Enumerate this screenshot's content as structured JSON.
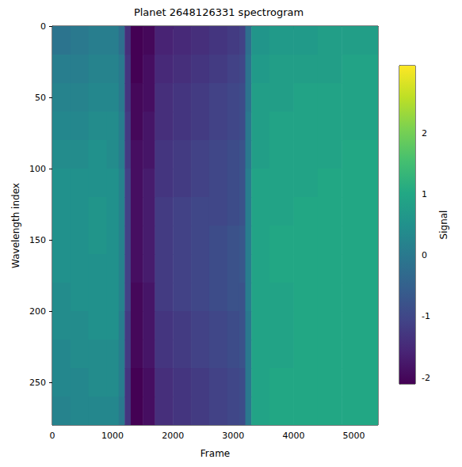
{
  "chart_data": {
    "type": "heatmap",
    "title": "Planet 2648126331 spectrogram",
    "x_label": "Frame",
    "y_label": "Wavelength index",
    "xlim": [
      0,
      5400
    ],
    "ylim": [
      280,
      0
    ],
    "xticks": [
      0,
      1000,
      2000,
      3000,
      4000,
      5000
    ],
    "yticks": [
      0,
      50,
      100,
      150,
      200,
      250
    ],
    "x_edges": [
      0,
      300,
      600,
      900,
      1100,
      1200,
      1300,
      1500,
      1700,
      2000,
      2300,
      2600,
      2900,
      3100,
      3200,
      3300,
      3600,
      4000,
      4400,
      4800,
      5400
    ],
    "y_edges": [
      0,
      20,
      40,
      60,
      80,
      100,
      120,
      140,
      160,
      180,
      200,
      220,
      240,
      260,
      280
    ],
    "cells": [
      [
        -0.1,
        0.0,
        0.1,
        0.1,
        -0.2,
        -1.4,
        -2.2,
        -2.0,
        -1.6,
        -1.5,
        -1.4,
        -1.3,
        -1.2,
        -1.1,
        -0.2,
        0.6,
        0.7,
        0.7,
        0.8,
        0.8
      ],
      [
        0.1,
        0.1,
        0.2,
        0.2,
        0.0,
        -1.3,
        -2.1,
        -1.9,
        -1.5,
        -1.4,
        -1.3,
        -1.2,
        -1.1,
        -1.0,
        -0.1,
        0.7,
        0.8,
        0.8,
        0.8,
        0.9
      ],
      [
        0.2,
        0.2,
        0.3,
        0.3,
        0.0,
        -1.3,
        -2.0,
        -1.9,
        -1.4,
        -1.3,
        -1.2,
        -1.1,
        -1.0,
        -0.9,
        -0.1,
        0.8,
        0.8,
        0.9,
        0.9,
        0.9
      ],
      [
        0.3,
        0.3,
        0.4,
        0.4,
        0.1,
        -1.2,
        -2.0,
        -1.8,
        -1.4,
        -1.3,
        -1.2,
        -1.1,
        -1.0,
        -0.9,
        0.0,
        0.8,
        0.9,
        0.9,
        0.9,
        0.9
      ],
      [
        0.4,
        0.4,
        0.5,
        0.4,
        0.1,
        -1.2,
        -1.9,
        -1.8,
        -1.3,
        -1.2,
        -1.1,
        -1.0,
        -0.9,
        -0.8,
        0.0,
        0.8,
        0.9,
        0.9,
        0.9,
        1.0
      ],
      [
        0.5,
        0.5,
        0.5,
        0.5,
        0.2,
        -1.1,
        -1.9,
        -1.7,
        -1.3,
        -1.2,
        -1.1,
        -1.0,
        -0.9,
        -0.8,
        0.1,
        0.9,
        0.9,
        0.9,
        1.0,
        1.0
      ],
      [
        0.5,
        0.5,
        0.6,
        0.5,
        0.2,
        -1.1,
        -1.9,
        -1.7,
        -1.2,
        -1.1,
        -1.0,
        -1.0,
        -0.9,
        -0.8,
        0.1,
        0.9,
        0.9,
        1.0,
        1.0,
        1.0
      ],
      [
        0.5,
        0.5,
        0.6,
        0.5,
        0.2,
        -1.1,
        -1.9,
        -1.7,
        -1.2,
        -1.1,
        -1.0,
        -0.9,
        -0.8,
        -0.7,
        0.1,
        0.9,
        1.0,
        1.0,
        1.0,
        1.0
      ],
      [
        0.5,
        0.5,
        0.5,
        0.5,
        0.2,
        -1.1,
        -1.9,
        -1.7,
        -1.2,
        -1.1,
        -1.0,
        -0.9,
        -0.8,
        -0.7,
        0.1,
        0.9,
        1.0,
        1.0,
        1.0,
        1.0
      ],
      [
        0.4,
        0.5,
        0.5,
        0.5,
        0.2,
        -1.1,
        -2.0,
        -1.8,
        -1.2,
        -1.1,
        -1.0,
        -0.9,
        -0.8,
        -0.8,
        0.1,
        0.9,
        0.9,
        1.0,
        1.0,
        1.0
      ],
      [
        0.4,
        0.4,
        0.5,
        0.5,
        0.1,
        -1.2,
        -2.0,
        -1.8,
        -1.3,
        -1.2,
        -1.1,
        -1.0,
        -0.9,
        -0.8,
        0.0,
        0.9,
        0.9,
        1.0,
        1.0,
        1.0
      ],
      [
        0.3,
        0.4,
        0.4,
        0.4,
        0.1,
        -1.2,
        -2.0,
        -1.8,
        -1.3,
        -1.2,
        -1.1,
        -1.0,
        -0.9,
        -0.8,
        0.0,
        0.9,
        0.9,
        1.0,
        1.0,
        1.0
      ],
      [
        0.3,
        0.3,
        0.4,
        0.4,
        0.1,
        -1.3,
        -2.1,
        -1.9,
        -1.4,
        -1.3,
        -1.2,
        -1.1,
        -1.0,
        -0.9,
        0.0,
        0.9,
        1.0,
        1.0,
        1.0,
        1.0
      ],
      [
        0.2,
        0.3,
        0.3,
        0.3,
        0.0,
        -1.3,
        -2.1,
        -1.9,
        -1.4,
        -1.3,
        -1.2,
        -1.1,
        -1.0,
        -0.9,
        0.0,
        0.9,
        1.0,
        1.0,
        1.0,
        1.0
      ]
    ],
    "colorbar_label": "Signal",
    "colorbar_range": [
      -2.1,
      3.1
    ],
    "colorbar_ticks": [
      -2,
      -1,
      0,
      1,
      2
    ]
  }
}
